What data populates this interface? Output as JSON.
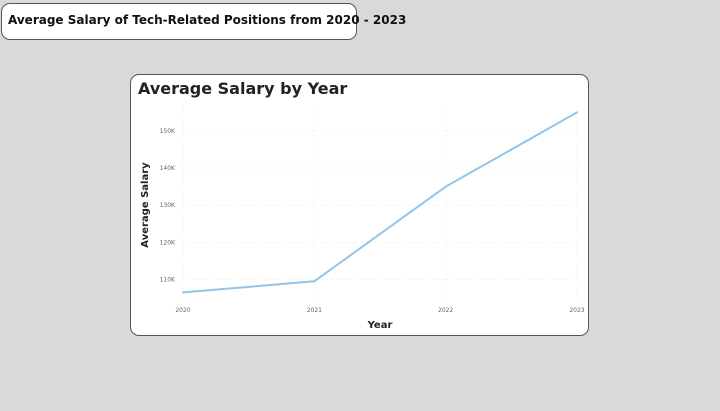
{
  "page": {
    "title": "Average Salary of Tech-Related Positions from 2020 - 2023"
  },
  "chart_data": {
    "type": "line",
    "title": "Average Salary by Year",
    "xlabel": "Year",
    "ylabel": "Average Salary",
    "categories": [
      "2020",
      "2021",
      "2022",
      "2023"
    ],
    "series": [
      {
        "values": [
          106500,
          109500,
          135000,
          155000
        ]
      }
    ],
    "ylim": [
      105000,
      157000
    ],
    "yticks": [
      110000,
      120000,
      130000,
      140000,
      150000
    ],
    "ytick_labels": [
      "110K",
      "120K",
      "130K",
      "140K",
      "150K"
    ],
    "grid": true,
    "line_color": "#93c5e8",
    "grid_color": "#eeeeee"
  }
}
